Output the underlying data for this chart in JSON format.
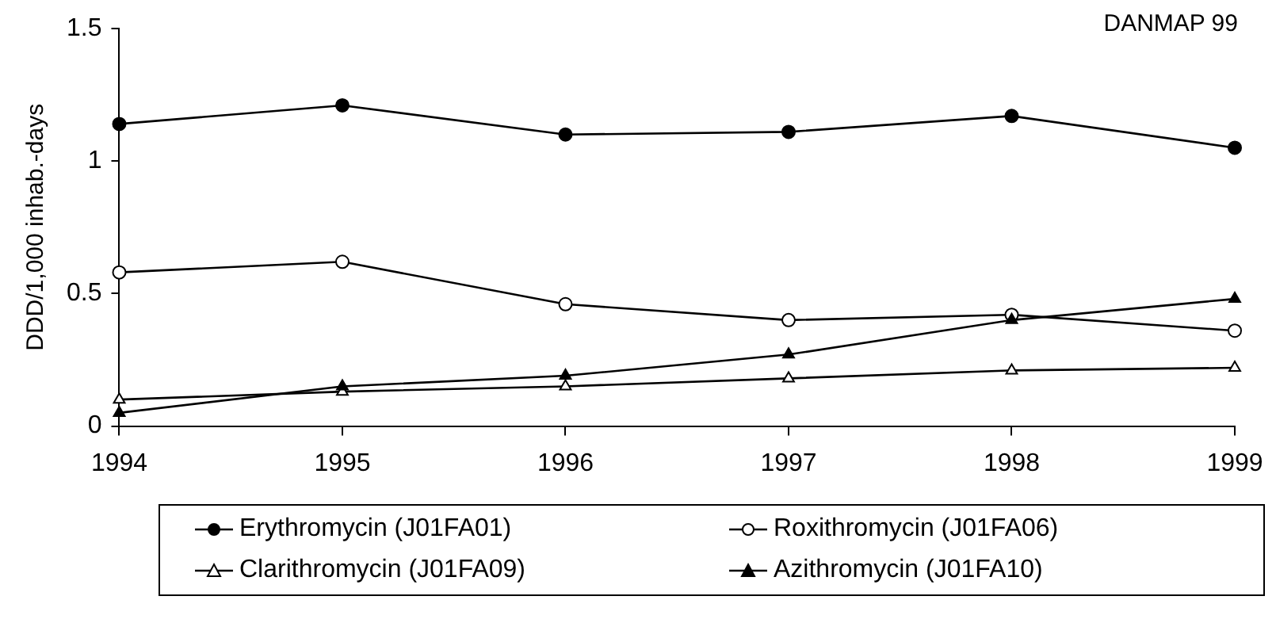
{
  "chart_data": {
    "type": "line",
    "ylabel": "DDD/1,000 inhab.-days",
    "annotations": [
      "DANMAP 99"
    ],
    "x": [
      1994,
      1995,
      1996,
      1997,
      1998,
      1999
    ],
    "xlim": [
      1994,
      1999
    ],
    "xticks": [
      1994,
      1995,
      1996,
      1997,
      1998,
      1999
    ],
    "ylim": [
      0,
      1.5
    ],
    "yticks": [
      0,
      0.5,
      1,
      1.5
    ],
    "grid": false,
    "legend": "bottom",
    "line_style": "solid",
    "series": [
      {
        "name": "Erythromycin (J01FA01)",
        "color": "#000000",
        "marker": "circle",
        "values": [
          1.14,
          1.21,
          1.1,
          1.11,
          1.17,
          1.05
        ]
      },
      {
        "name": "Roxithromycin (J01FA06)",
        "color": "#000000",
        "marker": "circle",
        "values": [
          0.58,
          0.62,
          0.46,
          0.4,
          0.42,
          0.36
        ]
      },
      {
        "name": "Clarithromycin (J01FA09)",
        "color": "#000000",
        "marker": "triangle",
        "values": [
          0.1,
          0.13,
          0.15,
          0.18,
          0.21,
          0.22
        ]
      },
      {
        "name": "Azithromycin (J01FA10)",
        "color": "#000000",
        "marker": "triangle",
        "values": [
          0.05,
          0.15,
          0.19,
          0.27,
          0.4,
          0.48
        ]
      }
    ]
  }
}
